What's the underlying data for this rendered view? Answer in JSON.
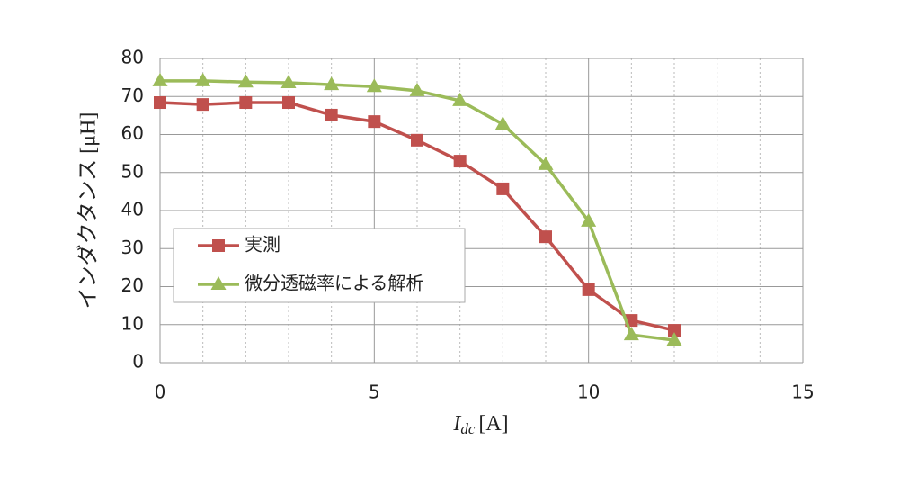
{
  "chart_data": {
    "type": "line",
    "x_label": {
      "symbol": "I",
      "subscript": "dc",
      "unit": "[A]"
    },
    "y_label": "インダクタンス [μH]",
    "x": [
      0,
      1,
      2,
      3,
      4,
      5,
      6,
      7,
      8,
      9,
      10,
      11,
      12
    ],
    "series": [
      {
        "name": "実測",
        "color": "#c0504d",
        "marker": "square",
        "values": [
          68.4,
          67.9,
          68.4,
          68.4,
          65.1,
          63.4,
          58.5,
          53.0,
          45.7,
          33.1,
          19.2,
          11.1,
          8.5
        ]
      },
      {
        "name": "微分透磁率による解析",
        "color": "#9bbb59",
        "marker": "triangle",
        "values": [
          74.1,
          74.1,
          73.8,
          73.6,
          73.1,
          72.6,
          71.5,
          68.9,
          62.7,
          52.1,
          37.2,
          7.3,
          5.9
        ]
      }
    ],
    "xlim": [
      0,
      15
    ],
    "xticks": [
      0,
      5,
      10,
      15
    ],
    "xminorticks": [
      1,
      2,
      3,
      4,
      6,
      7,
      8,
      9,
      11,
      12,
      13,
      14
    ],
    "ylim": [
      0,
      80
    ],
    "yticks": [
      0,
      10,
      20,
      30,
      40,
      50,
      60,
      70,
      80
    ],
    "grid": true,
    "legend": "left"
  }
}
